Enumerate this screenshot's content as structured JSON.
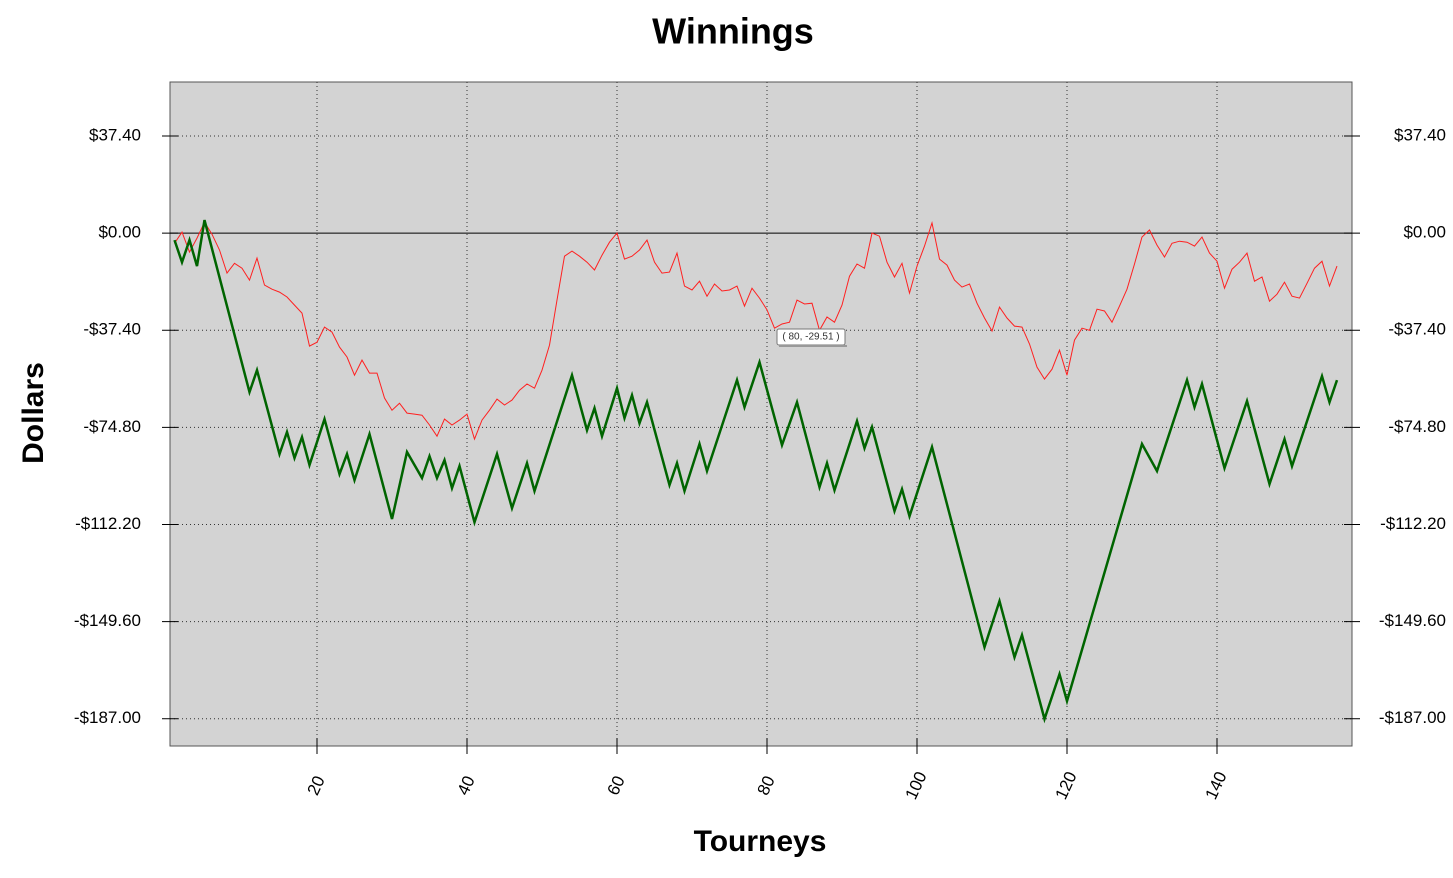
{
  "chart_data": {
    "type": "line",
    "title": "Winnings",
    "x_label": "Tourneys",
    "y_label": "Dollars",
    "xlim": [
      0.4,
      158
    ],
    "ylim": [
      -197.5,
      58.2
    ],
    "xticks": [
      20,
      40,
      60,
      80,
      100,
      120,
      140
    ],
    "yticks": [
      {
        "value": 37.4,
        "label": "$37.40"
      },
      {
        "value": 0,
        "label": "$0.00"
      },
      {
        "value": -37.4,
        "label": "-$37.40"
      },
      {
        "value": -74.8,
        "label": "-$74.80"
      },
      {
        "value": -112.2,
        "label": "-$112.20"
      },
      {
        "value": -149.6,
        "label": "-$149.60"
      },
      {
        "value": -187,
        "label": "-$187.00"
      }
    ],
    "grid": true,
    "plot_background": "#d3d3d3",
    "annotation": "( 80, -29.51 )",
    "series": [
      {
        "color": "#ff2020",
        "width": 1,
        "x": [
          1,
          2,
          3,
          4,
          5,
          6,
          7,
          8,
          9,
          10,
          11,
          12,
          13,
          14,
          15,
          16,
          17,
          18,
          19,
          20,
          21,
          22,
          23,
          24,
          25,
          26,
          27,
          28,
          29,
          30,
          31,
          32,
          33,
          34,
          35,
          36,
          37,
          38,
          39,
          40,
          41,
          42,
          43,
          44,
          45,
          46,
          47,
          48,
          49,
          50,
          51,
          52,
          53,
          54,
          55,
          56,
          57,
          58,
          59,
          60,
          61,
          62,
          63,
          64,
          65,
          66,
          67,
          68,
          69,
          70,
          71,
          72,
          73,
          74,
          75,
          76,
          77,
          78,
          79,
          80,
          81,
          82,
          83,
          84,
          85,
          86,
          87,
          88,
          89,
          90,
          91,
          92,
          93,
          94,
          95,
          96,
          97,
          98,
          99,
          100,
          101,
          102,
          103,
          104,
          105,
          106,
          107,
          108,
          109,
          110,
          111,
          112,
          113,
          114,
          115,
          116,
          117,
          118,
          119,
          120,
          121,
          122,
          123,
          124,
          125,
          126,
          127,
          128,
          129,
          130,
          131,
          132,
          133,
          134,
          135,
          136,
          137,
          138,
          139,
          140,
          141,
          142,
          143,
          144,
          145,
          146,
          147,
          148,
          149,
          150,
          151,
          152,
          153,
          154,
          155,
          156
        ],
        "values": [
          -3.9,
          0.4,
          -7.3,
          -1.9,
          4.2,
          -0.4,
          -6.5,
          -15.4,
          -11.6,
          -13.5,
          -18.1,
          -9.6,
          -20.0,
          -21.6,
          -22.7,
          -24.6,
          -27.7,
          -30.8,
          -43.5,
          -42.0,
          -36.2,
          -38.1,
          -43.9,
          -47.7,
          -54.7,
          -48.9,
          -53.9,
          -53.9,
          -63.5,
          -68.2,
          -65.5,
          -69.3,
          -69.7,
          -70.1,
          -73.9,
          -78.2,
          -71.6,
          -73.9,
          -72.0,
          -69.7,
          -79.3,
          -72.0,
          -68.2,
          -63.9,
          -66.2,
          -64.3,
          -60.5,
          -58.1,
          -59.7,
          -52.8,
          -43.1,
          -25.8,
          -8.9,
          -6.9,
          -8.9,
          -11.2,
          -14.2,
          -8.5,
          -3.5,
          0.0,
          -10.0,
          -8.9,
          -6.5,
          -2.7,
          -11.2,
          -15.4,
          -15.0,
          -7.7,
          -20.4,
          -21.9,
          -18.5,
          -24.3,
          -19.6,
          -22.3,
          -21.9,
          -20.4,
          -28.1,
          -21.2,
          -25.0,
          -29.51,
          -36.6,
          -35.0,
          -34.3,
          -25.8,
          -27.3,
          -27.0,
          -37.4,
          -32.3,
          -34.3,
          -27.7,
          -16.6,
          -11.9,
          -13.5,
          0.0,
          -1.2,
          -11.2,
          -16.9,
          -11.6,
          -23.1,
          -12.7,
          -5.0,
          3.9,
          -10.0,
          -12.3,
          -18.1,
          -20.8,
          -19.6,
          -27.0,
          -32.7,
          -37.7,
          -28.5,
          -32.7,
          -35.8,
          -36.2,
          -42.7,
          -51.6,
          -56.2,
          -52.4,
          -45.1,
          -54.7,
          -41.2,
          -36.6,
          -37.4,
          -29.3,
          -30.0,
          -34.3,
          -28.1,
          -21.6,
          -11.9,
          -1.5,
          1.2,
          -4.6,
          -9.2,
          -3.9,
          -3.1,
          -3.5,
          -5.0,
          -1.5,
          -7.7,
          -10.8,
          -21.2,
          -13.9,
          -11.2,
          -7.7,
          -18.5,
          -16.9,
          -26.2,
          -23.5,
          -18.9,
          -24.3,
          -25.0,
          -19.3,
          -13.5,
          -10.8,
          -20.4,
          -12.7
        ]
      },
      {
        "color": "#006400",
        "width": 2.5,
        "x": [
          1,
          2,
          3,
          4,
          5,
          11,
          12,
          15,
          16,
          17,
          18,
          19,
          21,
          23,
          24,
          25,
          27,
          30,
          32,
          34,
          35,
          36,
          37,
          38,
          39,
          41,
          44,
          46,
          48,
          49,
          54,
          56,
          57,
          58,
          60,
          61,
          62,
          63,
          64,
          67,
          68,
          69,
          71,
          72,
          76,
          77,
          79,
          82,
          84,
          87,
          88,
          89,
          92,
          93,
          94,
          97,
          98,
          99,
          102,
          109,
          111,
          113,
          114,
          117,
          119,
          120,
          130,
          132,
          136,
          137,
          138,
          141,
          144,
          147,
          149,
          150,
          154,
          155,
          156
        ],
        "values": [
          -2.7,
          -11.2,
          -2.7,
          -12.7,
          5.0,
          -61.2,
          -52.8,
          -85.1,
          -76.6,
          -86.6,
          -78.6,
          -89.3,
          -71.6,
          -92.8,
          -85.1,
          -95.1,
          -77.4,
          -110.1,
          -84.3,
          -94.3,
          -85.9,
          -94.3,
          -87.4,
          -98.2,
          -89.7,
          -111.3,
          -85.1,
          -105.9,
          -88.6,
          -99.3,
          -54.7,
          -75.9,
          -67.4,
          -78.2,
          -59.7,
          -71.2,
          -62.4,
          -73.2,
          -65.1,
          -97.0,
          -88.6,
          -99.3,
          -81.2,
          -91.6,
          -56.6,
          -67.0,
          -49.7,
          -81.6,
          -65.1,
          -97.8,
          -88.6,
          -99.0,
          -72.4,
          -82.8,
          -74.7,
          -107.0,
          -98.6,
          -109.0,
          -82.4,
          -159.4,
          -141.7,
          -163.3,
          -154.8,
          -187.1,
          -169.8,
          -180.2,
          -81.2,
          -91.6,
          -56.6,
          -67.0,
          -58.1,
          -90.5,
          -64.7,
          -96.6,
          -79.3,
          -89.7,
          -55.1,
          -65.1,
          -56.6
        ]
      }
    ]
  }
}
